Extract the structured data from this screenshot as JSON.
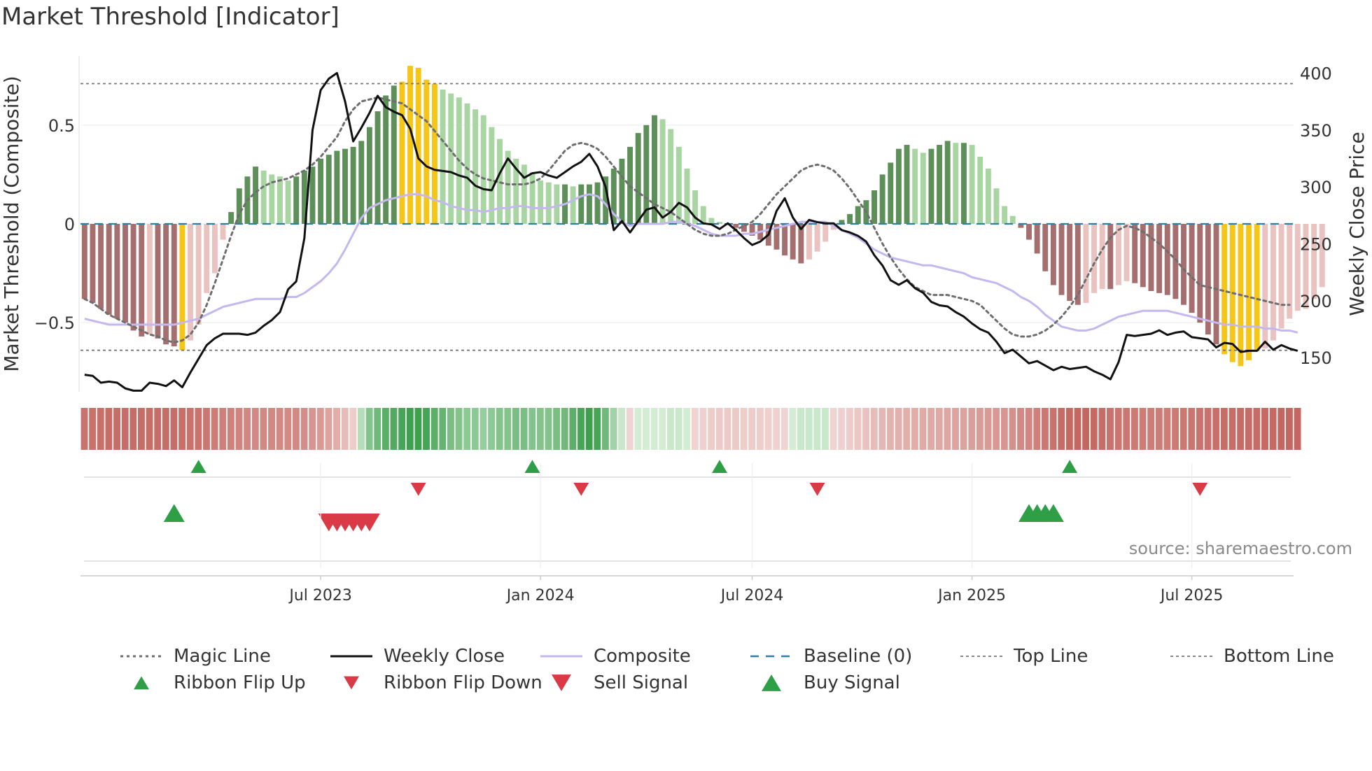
{
  "chart_data": {
    "type": "bar+line",
    "title": "Market Threshold [Indicator]",
    "ylabel_left": "Market Threshold (Composite)",
    "ylabel_right": "Weekly Close Price",
    "left_axis": {
      "ylim": [
        -0.85,
        0.85
      ],
      "ticks": [
        0.5,
        0,
        -0.5
      ],
      "tick_labels": [
        "0.5",
        "0",
        "−0.5"
      ]
    },
    "right_axis": {
      "ylim": [
        120,
        415
      ],
      "ticks": [
        400,
        350,
        300,
        250,
        200,
        150
      ],
      "tick_labels": [
        "400",
        "350",
        "300",
        "250",
        "200",
        "150"
      ]
    },
    "x_ticks": [
      {
        "week": 29,
        "label": "Jul 2023"
      },
      {
        "week": 56,
        "label": "Jan 2024"
      },
      {
        "week": 82,
        "label": "Jul 2024"
      },
      {
        "week": 109,
        "label": "Jan 2025"
      },
      {
        "week": 136,
        "label": "Jul 2025"
      }
    ],
    "weeks": 149,
    "composite_bars": [
      -0.38,
      -0.4,
      -0.43,
      -0.46,
      -0.48,
      -0.5,
      -0.54,
      -0.57,
      -0.56,
      -0.58,
      -0.61,
      -0.62,
      -0.64,
      -0.59,
      -0.51,
      -0.35,
      -0.25,
      -0.08,
      0.06,
      0.18,
      0.24,
      0.29,
      0.27,
      0.25,
      0.24,
      0.22,
      0.24,
      0.27,
      0.29,
      0.33,
      0.35,
      0.37,
      0.38,
      0.39,
      0.42,
      0.49,
      0.57,
      0.65,
      0.7,
      0.72,
      0.8,
      0.79,
      0.73,
      0.71,
      0.68,
      0.66,
      0.64,
      0.61,
      0.58,
      0.55,
      0.49,
      0.43,
      0.37,
      0.33,
      0.3,
      0.26,
      0.22,
      0.21,
      0.2,
      0.2,
      0.19,
      0.2,
      0.2,
      0.21,
      0.24,
      0.28,
      0.33,
      0.39,
      0.46,
      0.5,
      0.55,
      0.53,
      0.48,
      0.39,
      0.28,
      0.17,
      0.09,
      0.03,
      0.01,
      0.0,
      -0.02,
      -0.04,
      -0.06,
      -0.08,
      -0.11,
      -0.13,
      -0.16,
      -0.18,
      -0.2,
      -0.18,
      -0.14,
      -0.09,
      -0.03,
      0.02,
      0.05,
      0.09,
      0.12,
      0.17,
      0.25,
      0.31,
      0.38,
      0.4,
      0.38,
      0.36,
      0.38,
      0.4,
      0.42,
      0.41,
      0.41,
      0.4,
      0.34,
      0.28,
      0.18,
      0.09,
      0.04,
      -0.02,
      -0.08,
      -0.15,
      -0.24,
      -0.31,
      -0.36,
      -0.39,
      -0.41,
      -0.4,
      -0.35,
      -0.33,
      -0.33,
      -0.31,
      -0.29,
      -0.3,
      -0.32,
      -0.34,
      -0.35,
      -0.36,
      -0.38,
      -0.41,
      -0.45,
      -0.5,
      -0.56,
      -0.61,
      -0.66,
      -0.7,
      -0.72,
      -0.69,
      -0.64,
      -0.63,
      -0.59,
      -0.53,
      -0.48,
      -0.44,
      -0.43,
      -0.38,
      -0.32
    ],
    "weekly_close": [
      135,
      134,
      128,
      129,
      128,
      123,
      121,
      121,
      128,
      127,
      125,
      130,
      124,
      137,
      149,
      161,
      167,
      171,
      171,
      171,
      170,
      172,
      178,
      183,
      190,
      210,
      217,
      255,
      350,
      385,
      395,
      400,
      375,
      340,
      352,
      365,
      380,
      370,
      366,
      363,
      351,
      325,
      318,
      315,
      314,
      313,
      310,
      308,
      301,
      298,
      297,
      312,
      325,
      316,
      308,
      312,
      313,
      310,
      308,
      313,
      318,
      322,
      329,
      318,
      300,
      262,
      270,
      260,
      270,
      280,
      282,
      273,
      278,
      286,
      282,
      273,
      268,
      267,
      263,
      268,
      262,
      255,
      249,
      252,
      258,
      279,
      290,
      273,
      263,
      271,
      269,
      268,
      268,
      262,
      260,
      257,
      252,
      240,
      231,
      218,
      214,
      218,
      211,
      207,
      199,
      196,
      195,
      190,
      186,
      180,
      175,
      172,
      164,
      154,
      157,
      151,
      145,
      147,
      143,
      139,
      142,
      140,
      141,
      142,
      138,
      135,
      131,
      146,
      170,
      169,
      170,
      171,
      174,
      170,
      172,
      173,
      168,
      167,
      166,
      159,
      163,
      162,
      155,
      156,
      156,
      164,
      157,
      161,
      158,
      156
    ],
    "composite_line": [
      -0.48,
      -0.49,
      -0.5,
      -0.51,
      -0.51,
      -0.51,
      -0.51,
      -0.51,
      -0.51,
      -0.51,
      -0.51,
      -0.51,
      -0.5,
      -0.49,
      -0.48,
      -0.46,
      -0.44,
      -0.42,
      -0.41,
      -0.4,
      -0.39,
      -0.38,
      -0.38,
      -0.38,
      -0.38,
      -0.37,
      -0.37,
      -0.35,
      -0.32,
      -0.29,
      -0.25,
      -0.2,
      -0.13,
      -0.05,
      0.03,
      0.08,
      0.1,
      0.12,
      0.13,
      0.14,
      0.15,
      0.15,
      0.14,
      0.12,
      0.11,
      0.09,
      0.08,
      0.07,
      0.07,
      0.06,
      0.07,
      0.08,
      0.08,
      0.09,
      0.09,
      0.08,
      0.08,
      0.08,
      0.09,
      0.1,
      0.12,
      0.14,
      0.15,
      0.14,
      0.1,
      0.05,
      0.01,
      -0.01,
      0.0,
      0.0,
      0.0,
      0.0,
      0.01,
      0.01,
      0.0,
      -0.01,
      -0.03,
      -0.05,
      -0.06,
      -0.06,
      -0.06,
      -0.05,
      -0.05,
      -0.04,
      -0.03,
      -0.02,
      -0.01,
      0.0,
      0.01,
      0.01,
      0.01,
      0.01,
      -0.01,
      -0.03,
      -0.05,
      -0.07,
      -0.1,
      -0.13,
      -0.15,
      -0.17,
      -0.18,
      -0.19,
      -0.2,
      -0.21,
      -0.21,
      -0.22,
      -0.23,
      -0.24,
      -0.25,
      -0.27,
      -0.28,
      -0.29,
      -0.3,
      -0.32,
      -0.34,
      -0.37,
      -0.39,
      -0.42,
      -0.46,
      -0.49,
      -0.52,
      -0.53,
      -0.54,
      -0.54,
      -0.53,
      -0.51,
      -0.49,
      -0.47,
      -0.46,
      -0.45,
      -0.44,
      -0.44,
      -0.44,
      -0.44,
      -0.45,
      -0.46,
      -0.47,
      -0.48,
      -0.49,
      -0.5,
      -0.51,
      -0.51,
      -0.52,
      -0.52,
      -0.52,
      -0.53,
      -0.53,
      -0.54,
      -0.54,
      -0.55
    ],
    "magic_line": [
      -0.38,
      -0.4,
      -0.43,
      -0.46,
      -0.48,
      -0.5,
      -0.52,
      -0.54,
      -0.56,
      -0.57,
      -0.59,
      -0.6,
      -0.59,
      -0.56,
      -0.5,
      -0.41,
      -0.3,
      -0.18,
      -0.06,
      0.05,
      0.12,
      0.16,
      0.19,
      0.21,
      0.22,
      0.23,
      0.25,
      0.27,
      0.3,
      0.34,
      0.39,
      0.44,
      0.52,
      0.58,
      0.62,
      0.63,
      0.64,
      0.63,
      0.62,
      0.61,
      0.58,
      0.55,
      0.52,
      0.47,
      0.42,
      0.37,
      0.32,
      0.28,
      0.25,
      0.23,
      0.22,
      0.21,
      0.2,
      0.2,
      0.2,
      0.21,
      0.23,
      0.27,
      0.32,
      0.37,
      0.4,
      0.41,
      0.4,
      0.38,
      0.34,
      0.29,
      0.24,
      0.19,
      0.16,
      0.13,
      0.1,
      0.08,
      0.06,
      0.03,
      0.0,
      -0.03,
      -0.05,
      -0.06,
      -0.06,
      -0.05,
      -0.03,
      -0.01,
      0.01,
      0.05,
      0.1,
      0.15,
      0.19,
      0.23,
      0.27,
      0.29,
      0.3,
      0.29,
      0.27,
      0.23,
      0.18,
      0.12,
      0.06,
      -0.02,
      -0.1,
      -0.17,
      -0.23,
      -0.28,
      -0.32,
      -0.34,
      -0.36,
      -0.36,
      -0.36,
      -0.37,
      -0.38,
      -0.39,
      -0.41,
      -0.45,
      -0.49,
      -0.53,
      -0.56,
      -0.57,
      -0.57,
      -0.56,
      -0.54,
      -0.51,
      -0.47,
      -0.42,
      -0.36,
      -0.28,
      -0.2,
      -0.13,
      -0.07,
      -0.03,
      -0.01,
      -0.02,
      -0.04,
      -0.07,
      -0.1,
      -0.14,
      -0.18,
      -0.23,
      -0.27,
      -0.31,
      -0.32,
      -0.33,
      -0.34,
      -0.35,
      -0.36,
      -0.37,
      -0.38,
      -0.39,
      -0.4,
      -0.41,
      -0.41
    ],
    "top_line": 0.71,
    "bottom_line": -0.64,
    "baseline": 0,
    "ribbon_flip_up_weeks": [
      14,
      55,
      78,
      121
    ],
    "ribbon_flip_down_weeks": [
      41,
      61,
      90,
      137
    ],
    "buy_signal_weeks": [
      11,
      116,
      117,
      118,
      119
    ],
    "sell_signal_weeks": [
      30,
      31,
      32,
      33,
      34,
      35
    ],
    "colors": {
      "bar_dark_green": "#5d8f58",
      "bar_light_green": "#a8d5a2",
      "bar_dark_red": "#a56f6f",
      "bar_light_red": "#eac2c0",
      "bar_extreme": "#f5c518",
      "weekly_close": "#111111",
      "composite": "#c4b8ee",
      "magic_line": "#6e6e6e",
      "baseline": "#2f7fa5",
      "threshold_lines": "#777777",
      "signal_up": "#2e9e47",
      "signal_down": "#d93a46"
    },
    "legend": [
      {
        "key": "magic",
        "label": "Magic Line"
      },
      {
        "key": "close",
        "label": "Weekly Close"
      },
      {
        "key": "composite",
        "label": "Composite"
      },
      {
        "key": "baseline",
        "label": "Baseline (0)"
      },
      {
        "key": "top",
        "label": "Top Line"
      },
      {
        "key": "bottom",
        "label": "Bottom Line"
      },
      {
        "key": "flip-up",
        "label": "Ribbon Flip Up"
      },
      {
        "key": "flip-down",
        "label": "Ribbon Flip Down"
      },
      {
        "key": "sell",
        "label": "Sell Signal"
      },
      {
        "key": "buy",
        "label": "Buy Signal"
      }
    ],
    "source": "source: sharemaestro.com"
  }
}
